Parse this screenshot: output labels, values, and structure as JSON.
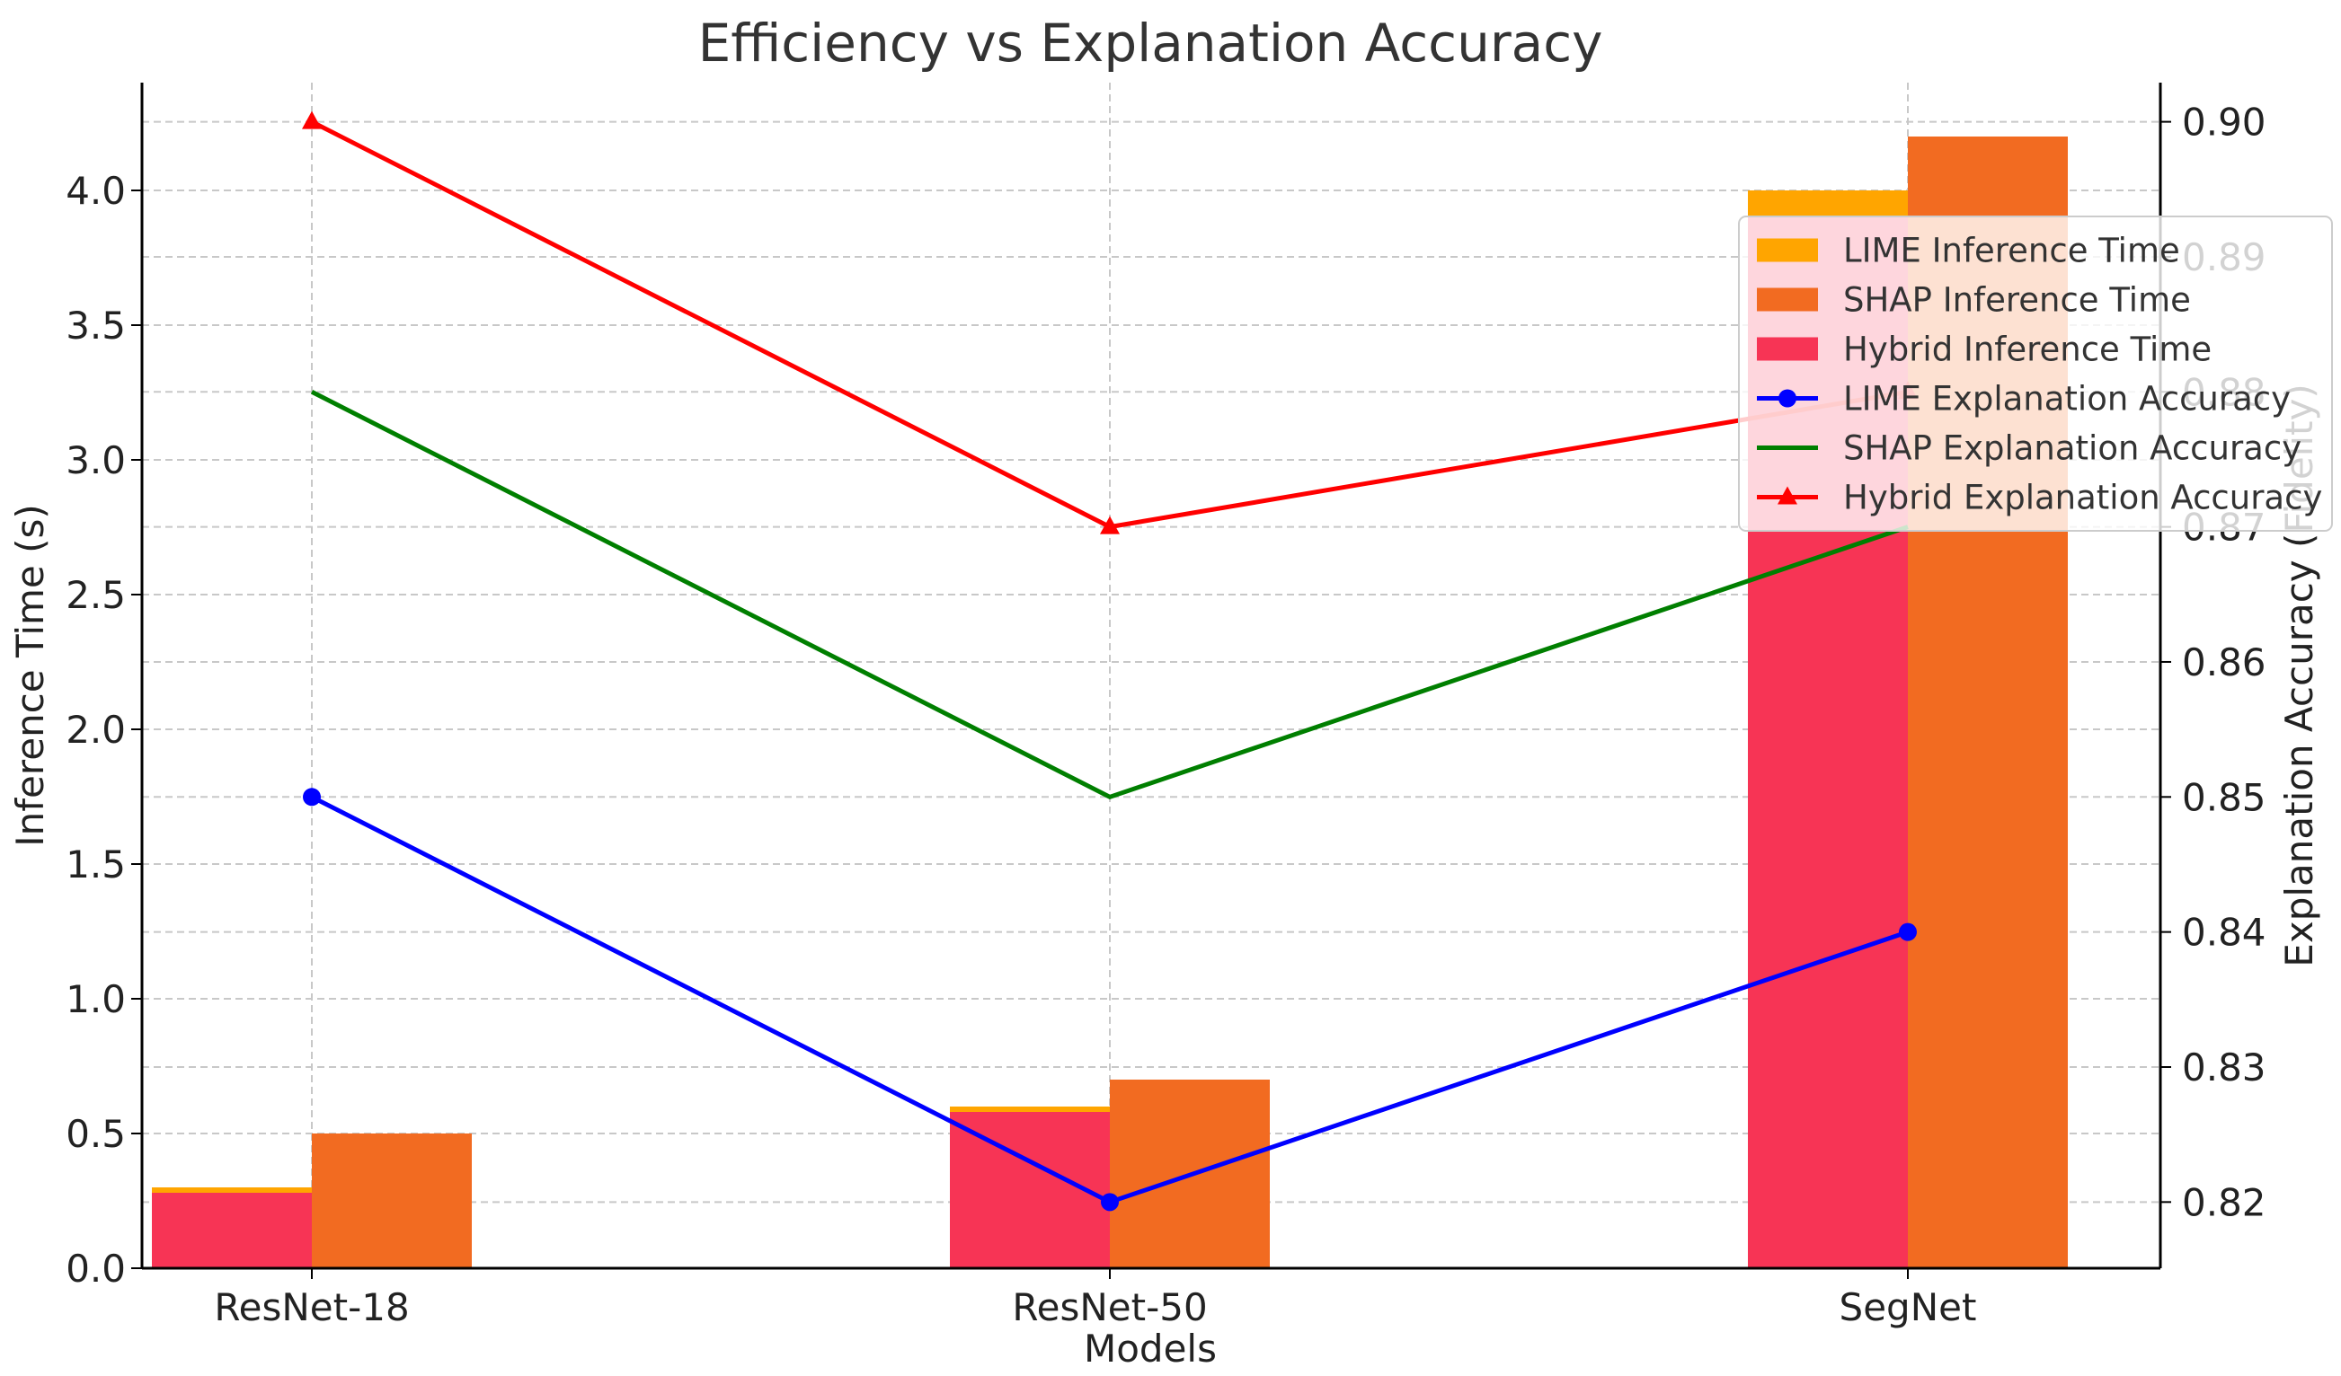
{
  "chart_data": {
    "type": "bar+line",
    "title": "Efficiency vs Explanation Accuracy",
    "xlabel": "Models",
    "ylabel": "Inference Time (s)",
    "y2label": "Explanation Accuracy (Fidelity)",
    "categories": [
      "ResNet-18",
      "ResNet-50",
      "SegNet"
    ],
    "ylim": [
      0,
      4.4
    ],
    "y2lim": [
      0.8151,
      0.9029
    ],
    "yticks": [
      "0.0",
      "0.5",
      "1.0",
      "1.5",
      "2.0",
      "2.5",
      "3.0",
      "3.5",
      "4.0"
    ],
    "y2ticks": [
      "0.82",
      "0.83",
      "0.84",
      "0.85",
      "0.86",
      "0.87",
      "0.88",
      "0.89",
      "0.90"
    ],
    "grid": true,
    "legend_position": "upper-right",
    "bar_series": [
      {
        "name": "LIME Inference Time",
        "values": [
          0.3,
          0.6,
          4.0
        ],
        "color": "#FFA500",
        "slot": 0
      },
      {
        "name": "SHAP Inference Time",
        "values": [
          0.5,
          0.7,
          4.2
        ],
        "color": "#F26B21",
        "slot": 1
      },
      {
        "name": "Hybrid Inference Time",
        "values": [
          0.28,
          0.58,
          3.9
        ],
        "color": "#F73455",
        "slot": 0
      }
    ],
    "line_series": [
      {
        "name": "LIME Explanation Accuracy",
        "values": [
          0.85,
          0.82,
          0.84
        ],
        "color": "#0000FF",
        "marker": "circle"
      },
      {
        "name": "SHAP Explanation Accuracy",
        "values": [
          0.88,
          0.85,
          0.87
        ],
        "color": "#007F00",
        "marker": "none"
      },
      {
        "name": "Hybrid Explanation Accuracy",
        "values": [
          0.9,
          0.87,
          0.88
        ],
        "color": "#FF0000",
        "marker": "triangle"
      }
    ]
  }
}
